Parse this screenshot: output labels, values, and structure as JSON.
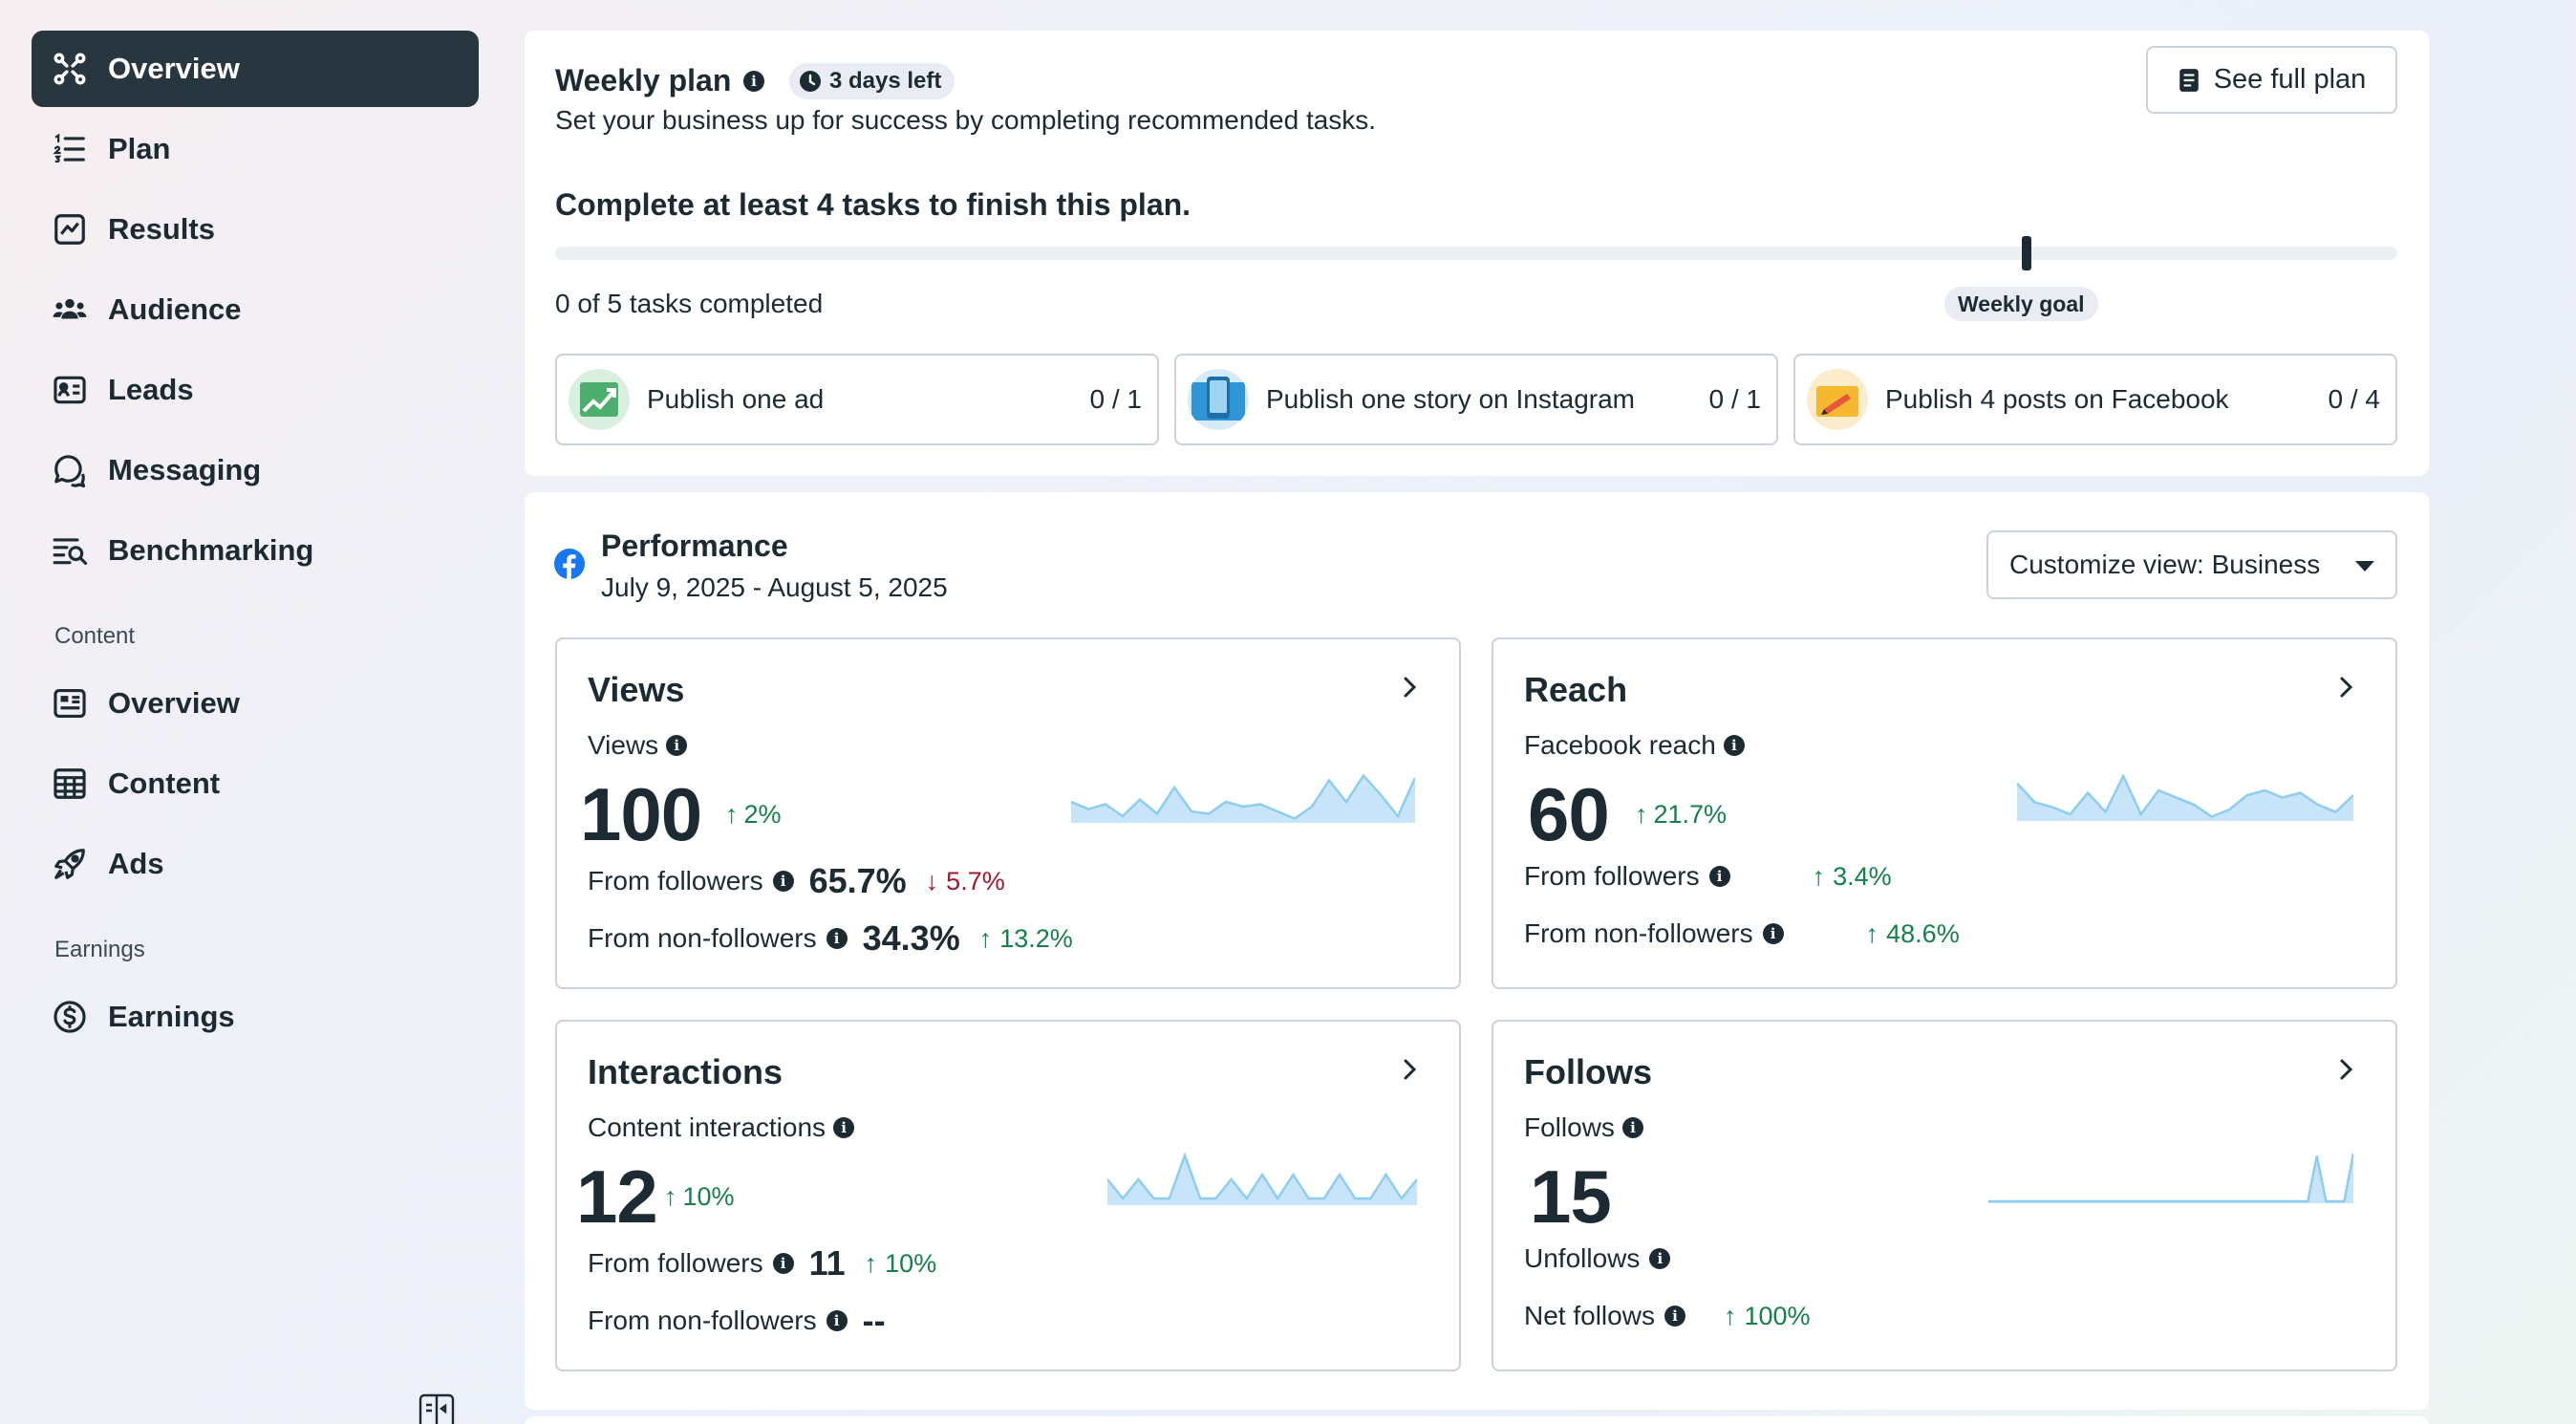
{
  "sidebar": {
    "items": [
      {
        "label": "Overview",
        "icon": "overview-icon"
      },
      {
        "label": "Plan",
        "icon": "plan-list-icon"
      },
      {
        "label": "Results",
        "icon": "results-chart-icon"
      },
      {
        "label": "Audience",
        "icon": "audience-icon"
      },
      {
        "label": "Leads",
        "icon": "leads-card-icon"
      },
      {
        "label": "Messaging",
        "icon": "messaging-icon"
      },
      {
        "label": "Benchmarking",
        "icon": "benchmarking-icon"
      }
    ],
    "content_section_label": "Content",
    "content_items": [
      {
        "label": "Overview",
        "icon": "content-overview-icon"
      },
      {
        "label": "Content",
        "icon": "content-table-icon"
      },
      {
        "label": "Ads",
        "icon": "ads-rocket-icon"
      }
    ],
    "earnings_section_label": "Earnings",
    "earnings_items": [
      {
        "label": "Earnings",
        "icon": "dollar-icon"
      }
    ]
  },
  "weekly_plan": {
    "title": "Weekly plan",
    "days_left": "3 days left",
    "subtitle": "Set your business up for success by completing recommended tasks.",
    "see_full_plan": "See full plan",
    "goal_text": "Complete at least 4 tasks to finish this plan.",
    "tasks_completed": "0 of 5 tasks completed",
    "progress_fraction": 0,
    "weekly_goal_label": "Weekly goal",
    "tasks": [
      {
        "label": "Publish one ad",
        "count": "0 / 1"
      },
      {
        "label": "Publish one story on Instagram",
        "count": "0 / 1"
      },
      {
        "label": "Publish 4 posts on Facebook",
        "count": "0 / 4"
      }
    ]
  },
  "performance": {
    "title": "Performance",
    "date_range": "July 9, 2025 - August 5, 2025",
    "customize_label": "Customize view: Business",
    "accent_color": "#1877f2",
    "positive_color": "#14804a",
    "negative_color": "#a1182f",
    "sparkline_fill": "#c7e4f8",
    "sparkline_stroke": "#8ccdf0",
    "views": {
      "title": "Views",
      "subtitle": "Views",
      "value": "100",
      "change": "2%",
      "followers_label": "From followers",
      "followers_pct": "65.7%",
      "followers_change": "5.7%",
      "nonfollowers_label": "From non-followers",
      "nonfollowers_pct": "34.3%",
      "nonfollowers_change": "13.2%",
      "sparkline": [
        0.4,
        0.25,
        0.35,
        0.1,
        0.45,
        0.15,
        0.7,
        0.2,
        0.15,
        0.4,
        0.3,
        0.35,
        0.2,
        0.05,
        0.3,
        0.85,
        0.4,
        0.95,
        0.55,
        0.1,
        0.9
      ]
    },
    "reach": {
      "title": "Reach",
      "subtitle": "Facebook reach",
      "value": "60",
      "change": "21.7%",
      "followers_label": "From followers",
      "followers_change": "3.4%",
      "nonfollowers_label": "From non-followers",
      "nonfollowers_change": "48.6%",
      "sparkline": [
        0.75,
        0.35,
        0.25,
        0.1,
        0.55,
        0.15,
        0.9,
        0.1,
        0.6,
        0.45,
        0.3,
        0.05,
        0.2,
        0.5,
        0.6,
        0.45,
        0.55,
        0.3,
        0.15,
        0.5
      ]
    },
    "interactions": {
      "title": "Interactions",
      "subtitle": "Content interactions",
      "value": "12",
      "change": "10%",
      "followers_label": "From followers",
      "followers_value": "11",
      "followers_change": "10%",
      "nonfollowers_label": "From non-followers",
      "nonfollowers_value": "--",
      "sparkline": [
        0.5,
        0.1,
        0.5,
        0.1,
        0.1,
        1.0,
        0.1,
        0.1,
        0.5,
        0.1,
        0.6,
        0.1,
        0.6,
        0.1,
        0.1,
        0.6,
        0.1,
        0.1,
        0.6,
        0.1,
        0.5
      ]
    },
    "follows": {
      "title": "Follows",
      "subtitle": "Follows",
      "value": "15",
      "unfollows_label": "Unfollows",
      "net_follows_label": "Net follows",
      "net_follows_change": "100%",
      "sparkline": [
        0,
        0,
        0,
        0,
        0,
        0,
        0,
        0,
        0,
        0,
        0,
        0,
        0,
        0,
        0,
        0,
        0,
        0,
        0,
        0,
        0,
        0,
        0,
        0,
        0,
        0,
        0,
        0,
        0,
        0,
        0,
        0,
        0,
        0,
        0,
        0,
        0.95,
        0,
        0,
        0,
        1.0
      ]
    }
  }
}
